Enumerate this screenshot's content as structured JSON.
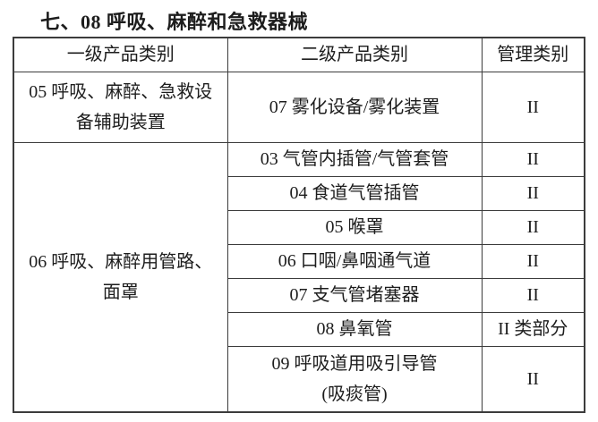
{
  "title": "七、08 呼吸、麻醉和急救器械",
  "colors": {
    "border": "#3c3c3c",
    "text": "#1d1d1d",
    "background": "#ffffff"
  },
  "table": {
    "headers": [
      "一级产品类别",
      "二级产品类别",
      "管理类别"
    ],
    "groups": [
      {
        "category_line1": "05 呼吸、麻醉、急救设",
        "category_line2": "备辅助装置",
        "rows": [
          {
            "sub": "07 雾化设备/雾化装置",
            "management_class": "II"
          }
        ]
      },
      {
        "category_line1": "06 呼吸、麻醉用管路、",
        "category_line2": "面罩",
        "rows": [
          {
            "sub": "03 气管内插管/气管套管",
            "management_class": "II"
          },
          {
            "sub": "04 食道气管插管",
            "management_class": "II"
          },
          {
            "sub": "05 喉罩",
            "management_class": "II"
          },
          {
            "sub": "06 口咽/鼻咽通气道",
            "management_class": "II"
          },
          {
            "sub": "07 支气管堵塞器",
            "management_class": "II"
          },
          {
            "sub": "08 鼻氧管",
            "management_class": "II 类部分"
          },
          {
            "sub": "09 呼吸道用吸引导管",
            "sub2": "(吸痰管)",
            "management_class": "II"
          }
        ]
      }
    ]
  }
}
